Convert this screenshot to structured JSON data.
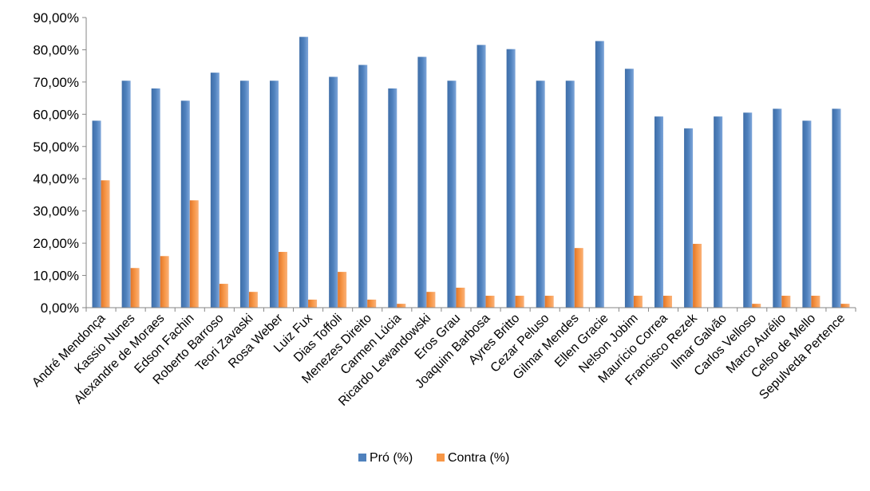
{
  "chart_data": {
    "type": "bar",
    "title": "",
    "xlabel": "",
    "ylabel": "",
    "ylim": [
      0,
      90
    ],
    "y_tick_step": 10,
    "y_tick_labels": [
      "0,00%",
      "10,00%",
      "20,00%",
      "30,00%",
      "40,00%",
      "50,00%",
      "60,00%",
      "70,00%",
      "80,00%",
      "90,00%"
    ],
    "grid": false,
    "legend_position": "bottom",
    "categories": [
      "André Mendonça",
      "Kassio Nunes",
      "Alexandre de Moraes",
      "Edson Fachin",
      "Roberto Barroso",
      "Teori Zavaski",
      "Rosa Weber",
      "Luiz Fux",
      "Dias Toffoli",
      "Menezes Direito",
      "Carmen Lúcia",
      "Ricardo Lewandowski",
      "Eros Grau",
      "Joaquim Barbosa",
      "Ayres Britto",
      "Cezar Peluso",
      "Gilmar Mendes",
      "Ellen Gracie",
      "Nelson Jobim",
      "Maurício Correa",
      "Francisco Rezek",
      "Ilmar Galvão",
      "Carlos Velloso",
      "Marco Aurélio",
      "Celso de Mello",
      "Sepulveda Pertence"
    ],
    "series": [
      {
        "name": "Pró (%)",
        "color": "#4F81BD",
        "values": [
          58.0,
          70.4,
          68.0,
          64.2,
          72.9,
          70.4,
          70.4,
          84.0,
          71.6,
          75.3,
          68.0,
          77.8,
          70.4,
          81.5,
          80.2,
          70.4,
          70.4,
          82.7,
          74.1,
          59.3,
          55.6,
          59.3,
          60.5,
          61.7,
          58.0,
          61.7
        ]
      },
      {
        "name": "Contra (%)",
        "color": "#F79646",
        "values": [
          39.5,
          12.3,
          16.0,
          33.3,
          7.4,
          4.9,
          17.3,
          2.5,
          11.1,
          2.5,
          1.2,
          4.9,
          6.2,
          3.7,
          3.7,
          3.7,
          18.5,
          0.0,
          3.7,
          3.7,
          19.8,
          0.0,
          1.2,
          3.7,
          3.7,
          1.2
        ]
      }
    ]
  }
}
